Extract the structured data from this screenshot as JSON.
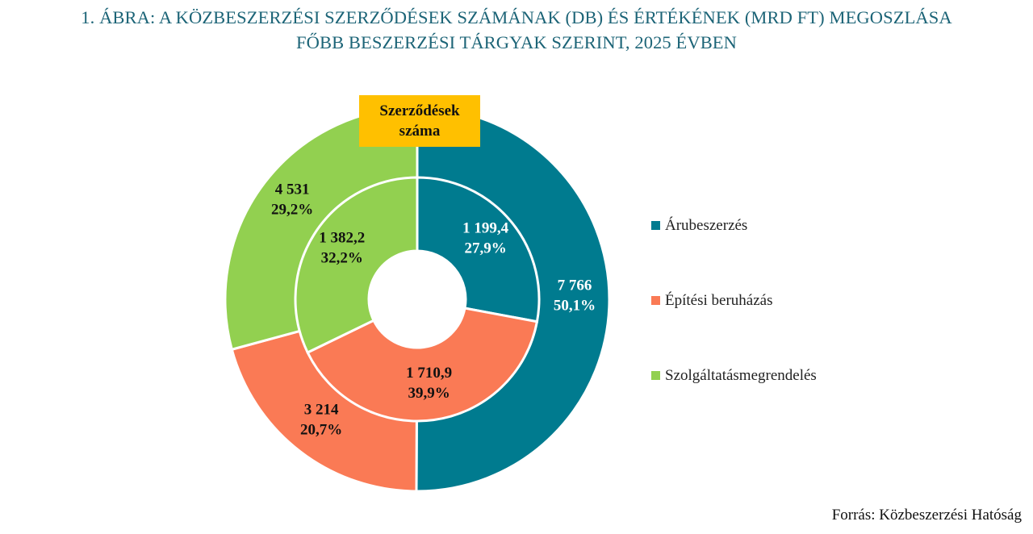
{
  "title": {
    "line1": "1. ÁBRA:  A KÖZBESZERZÉSI SZERZŐDÉSEK SZÁMÁNAK (DB) ÉS ÉRTÉKÉNEK (MRD FT) MEGOSZLÁSA",
    "line2": "FŐBB BESZERZÉSI TÁRGYAK SZERINT, 2025 ÉVBEN"
  },
  "source": "Forrás: Közbeszerzési Hatóság",
  "chart_data": {
    "type": "pie",
    "subtype": "double-donut",
    "categories": [
      "Árubeszerzés",
      "Építési beruházás",
      "Szolgáltatásmegrendelés"
    ],
    "colors": [
      "#007b8f",
      "#fa7a55",
      "#92d050"
    ],
    "legend_position": "right",
    "series": [
      {
        "ring": "outer",
        "label": [
          "Szerződések",
          "száma"
        ],
        "values": [
          7766,
          3214,
          4531
        ],
        "value_labels": [
          "7 766",
          "3 214",
          "4 531"
        ],
        "percent_labels": [
          "50,1%",
          "20,7%",
          "29,2%"
        ]
      },
      {
        "ring": "inner",
        "values": [
          1199.4,
          1710.9,
          1382.2
        ],
        "value_labels": [
          "1 199,4",
          "1 710,9",
          "1 382,2"
        ],
        "percent_labels": [
          "27,9%",
          "39,9%",
          "32,2%"
        ]
      }
    ],
    "label_colors": {
      "outer": [
        "#ffffff",
        "#111111",
        "#111111"
      ],
      "inner": [
        "#ffffff",
        "#111111",
        "#111111"
      ]
    },
    "badge_color": "#ffc000"
  }
}
